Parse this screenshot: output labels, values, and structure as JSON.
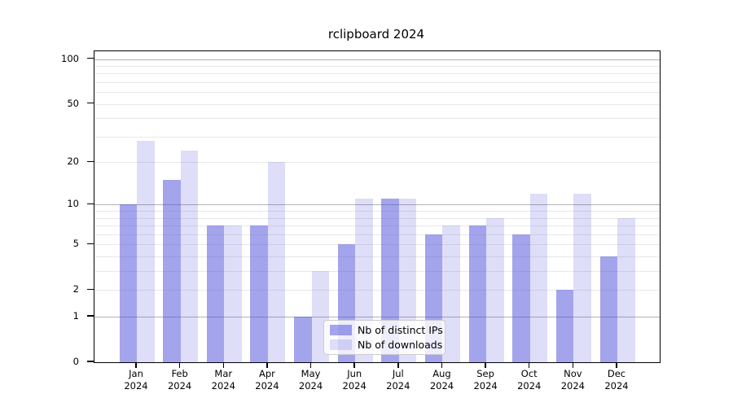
{
  "chart_data": {
    "type": "bar",
    "title": "rclipboard 2024",
    "categories": [
      "Jan",
      "Feb",
      "Mar",
      "Apr",
      "May",
      "Jun",
      "Jul",
      "Aug",
      "Sep",
      "Oct",
      "Nov",
      "Dec"
    ],
    "x_year_label": "2024",
    "series": [
      {
        "name": "Nb of distinct IPs",
        "color": "rgba(73,73,217,0.50)",
        "values": [
          10,
          15,
          7,
          7,
          1,
          5,
          11,
          6,
          7,
          6,
          2,
          4
        ]
      },
      {
        "name": "Nb of downloads",
        "color": "rgba(73,73,217,0.18)",
        "values": [
          28,
          24,
          7,
          20,
          3,
          11,
          11,
          7,
          8,
          12,
          12,
          8
        ]
      }
    ],
    "y_axis": {
      "scale": "log1p",
      "tick_values": [
        100,
        50,
        20,
        10,
        5,
        2,
        1,
        0
      ],
      "tick_labels": [
        "100",
        "50",
        "20",
        "10",
        "5",
        "2",
        "1",
        "0"
      ],
      "major_gridlines": [
        1,
        10,
        100
      ],
      "minor_gridlines": [
        2,
        3,
        4,
        5,
        6,
        7,
        8,
        9,
        20,
        30,
        40,
        50,
        60,
        70,
        80,
        90
      ],
      "ylim": [
        0,
        113
      ]
    },
    "grid": "horizontal",
    "legend_position": "bottom-center"
  },
  "colors": {
    "bar_base": "#4949d9",
    "major_gridline": "#b3b3b3",
    "minor_gridline": "#e8e8e8",
    "axis_frame": "#000000",
    "background": "#ffffff"
  }
}
